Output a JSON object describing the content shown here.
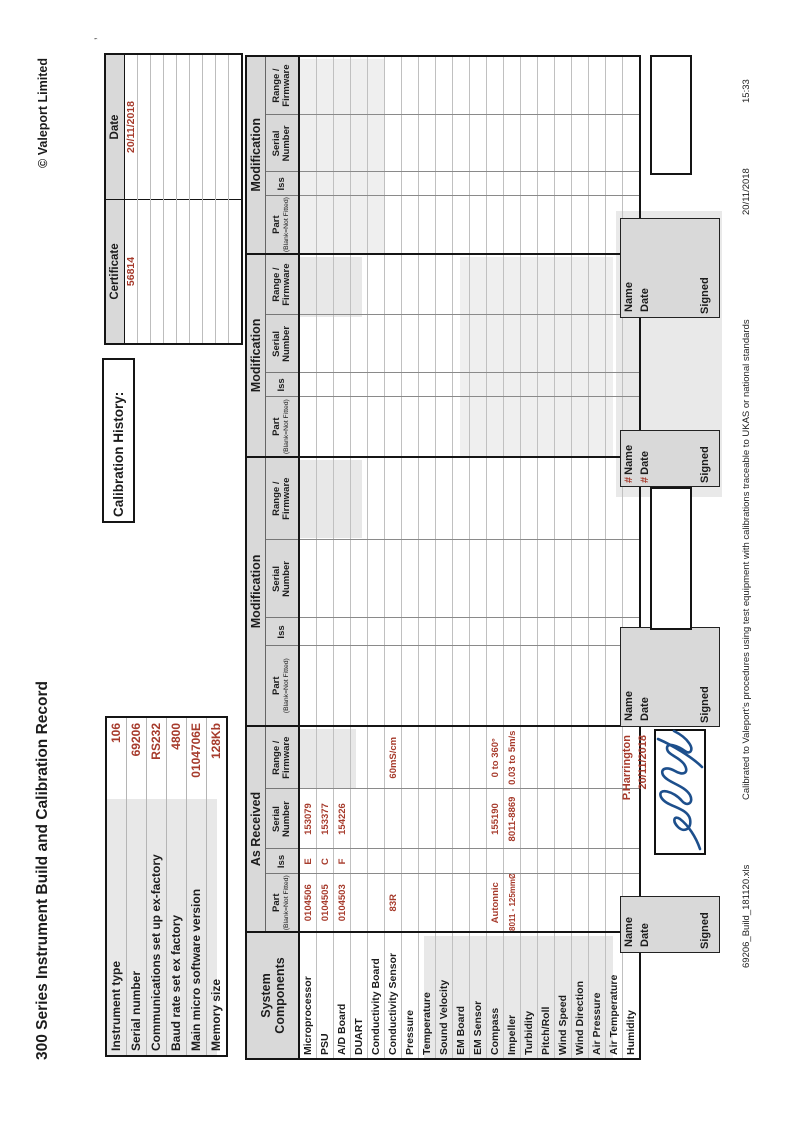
{
  "page": {
    "title": "300 Series Instrument Build and Calibration Record",
    "copyright": "© Valeport Limited",
    "tick_mark": "’"
  },
  "info_table": {
    "rows": [
      {
        "label": "Instrument type",
        "value": "106"
      },
      {
        "label": "Serial number",
        "value": "69206"
      },
      {
        "label": "Communications set up ex-factory",
        "value": "RS232"
      },
      {
        "label": "Baud rate set ex factory",
        "value": "4800"
      },
      {
        "label": "Main micro software version",
        "value": "0104706E"
      },
      {
        "label": "Memory size",
        "value": "128Kb"
      }
    ]
  },
  "calibration_history": {
    "heading": "Calibration History:",
    "columns": [
      "Certificate",
      "Date"
    ],
    "rows": [
      [
        "56814",
        "20/11/2018"
      ],
      [
        "",
        ""
      ],
      [
        "",
        ""
      ],
      [
        "",
        ""
      ],
      [
        "",
        ""
      ],
      [
        "",
        ""
      ],
      [
        "",
        ""
      ],
      [
        "",
        ""
      ],
      [
        "",
        ""
      ]
    ]
  },
  "main_table": {
    "components_header_line1": "System",
    "components_header_line2": "Components",
    "group_titles": [
      "As Received",
      "Modification",
      "Modification",
      "Modification"
    ],
    "column_headers": {
      "part": "Part",
      "part_note": "(Blank=Not Fitted)",
      "iss": "Iss",
      "serial_line1": "Serial",
      "serial_line2": "Number",
      "range_line1": "Range /",
      "range_line2": "Firmware"
    },
    "rows": [
      {
        "name": "Microprocessor",
        "part": "0104506",
        "iss": "E",
        "serial": "153079",
        "range": ""
      },
      {
        "name": "PSU",
        "part": "0104505",
        "iss": "C",
        "serial": "153377",
        "range": ""
      },
      {
        "name": "A/D Board",
        "part": "0104503",
        "iss": "F",
        "serial": "154226",
        "range": ""
      },
      {
        "name": "DUART",
        "part": "",
        "iss": "",
        "serial": "",
        "range": ""
      },
      {
        "name": "Conductivity Board",
        "part": "",
        "iss": "",
        "serial": "",
        "range": ""
      },
      {
        "name": "Conductivity Sensor",
        "part": "83R",
        "iss": "",
        "serial": "",
        "range": "60mS/cm"
      },
      {
        "name": "Pressure",
        "part": "",
        "iss": "",
        "serial": "",
        "range": ""
      },
      {
        "name": "Temperature",
        "part": "",
        "iss": "",
        "serial": "",
        "range": ""
      },
      {
        "name": "Sound Velocity",
        "part": "",
        "iss": "",
        "serial": "",
        "range": ""
      },
      {
        "name": "EM Board",
        "part": "",
        "iss": "",
        "serial": "",
        "range": ""
      },
      {
        "name": "EM Sensor",
        "part": "",
        "iss": "",
        "serial": "",
        "range": ""
      },
      {
        "name": "Compass",
        "part": "Autonnic",
        "iss": "",
        "serial": "155190",
        "range": "0 to 360°"
      },
      {
        "name": "Impeller",
        "part": "8011 - 125mmØ",
        "iss": "",
        "serial": "8011-8869",
        "range": "0.03 to 5m/s"
      },
      {
        "name": "Turbidity",
        "part": "",
        "iss": "",
        "serial": "",
        "range": ""
      },
      {
        "name": "Pitch/Roll",
        "part": "",
        "iss": "",
        "serial": "",
        "range": ""
      },
      {
        "name": "Wind Speed",
        "part": "",
        "iss": "",
        "serial": "",
        "range": ""
      },
      {
        "name": "Wind Direction",
        "part": "",
        "iss": "",
        "serial": "",
        "range": ""
      },
      {
        "name": "Air Pressure",
        "part": "",
        "iss": "",
        "serial": "",
        "range": ""
      },
      {
        "name": "Air Temperature",
        "part": "",
        "iss": "",
        "serial": "",
        "range": ""
      },
      {
        "name": "Humidity",
        "part": "",
        "iss": "",
        "serial": "",
        "range": ""
      }
    ]
  },
  "signature_blocks": [
    {
      "hash_mark": "",
      "name_label": "Name",
      "date_label": "Date",
      "signed_label": "Signed",
      "name_value": "P.Harrington",
      "date_value": "20/11/2018",
      "has_signature": true
    },
    {
      "hash_mark": "",
      "name_label": "Name",
      "date_label": "Date",
      "signed_label": "Signed",
      "name_value": "",
      "date_value": "",
      "has_signature": false
    },
    {
      "hash_mark": "#",
      "name_label": "Name",
      "date_label": "Date",
      "signed_label": "Signed",
      "name_value": "",
      "date_value": "",
      "has_signature": false
    },
    {
      "hash_mark": "",
      "name_label": "Name",
      "date_label": "Date",
      "signed_label": "Signed",
      "name_value": "",
      "date_value": "",
      "has_signature": false
    }
  ],
  "footer": {
    "filename": "69206_Build_181120.xls",
    "disclaimer": "Calibrated to Valeport's procedures using test equipment with calibrations traceable to UKAS or national standards",
    "date": "20/11/2018",
    "time": "15:33"
  },
  "colors": {
    "value_red": "#a63a2b",
    "signature_blue": "#1d4f8c",
    "header_grey": "#d9d9d9"
  }
}
